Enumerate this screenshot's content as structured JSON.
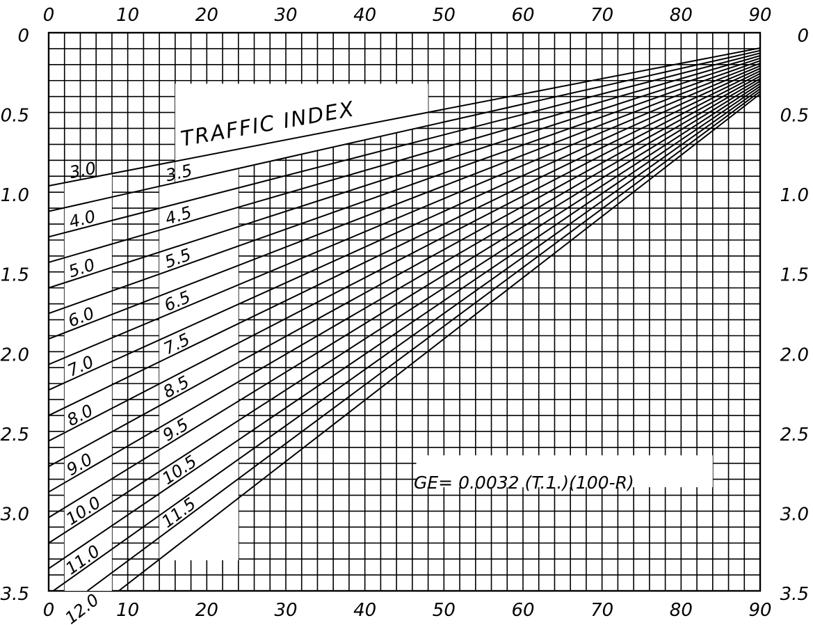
{
  "chart_data": {
    "type": "line",
    "title": "TRAFFIC INDEX",
    "formula": "GE= 0.0032 (T.1.)(100-R)",
    "xlim": [
      0,
      90
    ],
    "ylim": [
      0,
      3.5
    ],
    "y_inverted": true,
    "x_ticks": [
      0,
      10,
      20,
      30,
      40,
      50,
      60,
      70,
      80,
      90
    ],
    "x_tick_labels": [
      "0",
      "10",
      "20",
      "30",
      "40",
      "50",
      "60",
      "70",
      "80",
      "90"
    ],
    "y_ticks": [
      0,
      0.5,
      1.0,
      1.5,
      2.0,
      2.5,
      3.0,
      3.5
    ],
    "y_tick_labels": [
      "0",
      "0.5",
      "1.0",
      "1.5",
      "2.0",
      "2.5",
      "3.0",
      "3.5"
    ],
    "grid": true,
    "grid_minor_x_step": 2,
    "grid_minor_y_step": 0.1,
    "series": [
      {
        "name": "3.0",
        "ti": 3.0
      },
      {
        "name": "3.5",
        "ti": 3.5
      },
      {
        "name": "4.0",
        "ti": 4.0
      },
      {
        "name": "4.5",
        "ti": 4.5
      },
      {
        "name": "5.0",
        "ti": 5.0
      },
      {
        "name": "5.5",
        "ti": 5.5
      },
      {
        "name": "6.0",
        "ti": 6.0
      },
      {
        "name": "6.5",
        "ti": 6.5
      },
      {
        "name": "7.0",
        "ti": 7.0
      },
      {
        "name": "7.5",
        "ti": 7.5
      },
      {
        "name": "8.0",
        "ti": 8.0
      },
      {
        "name": "8.5",
        "ti": 8.5
      },
      {
        "name": "9.0",
        "ti": 9.0
      },
      {
        "name": "9.5",
        "ti": 9.5
      },
      {
        "name": "10.0",
        "ti": 10.0
      },
      {
        "name": "10.5",
        "ti": 10.5
      },
      {
        "name": "11.0",
        "ti": 11.0
      },
      {
        "name": "11.5",
        "ti": 11.5
      },
      {
        "name": "12.0",
        "ti": 12.0
      }
    ]
  }
}
